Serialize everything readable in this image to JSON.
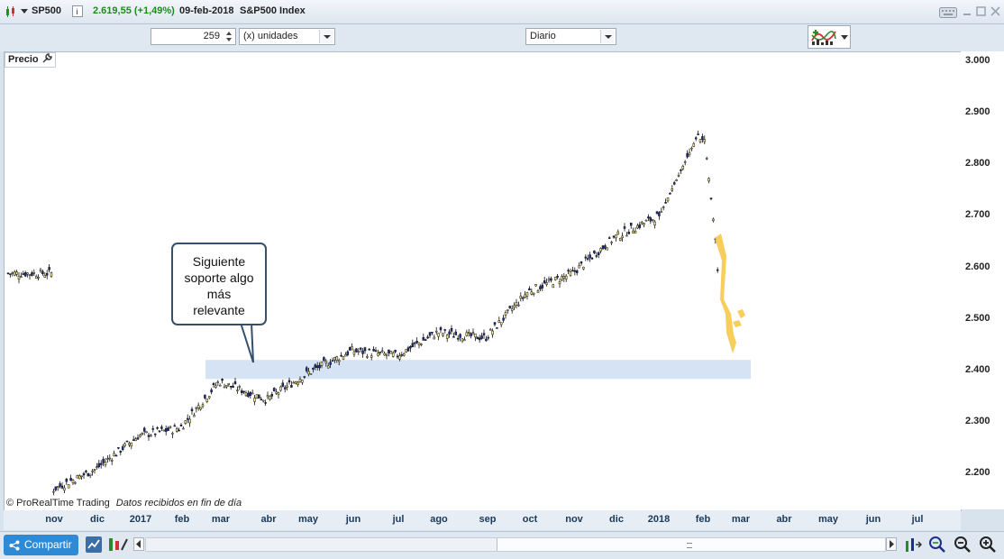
{
  "titlebar": {
    "symbol": "SP500",
    "price": "2.619,55 (+1,49%)",
    "date": "09-feb-2018",
    "instrument": "S&P500 Index"
  },
  "controls": {
    "units_value": "259",
    "units_label": "(x) unidades",
    "period": "Diario"
  },
  "chart": {
    "panel_label": "Precio",
    "callout_text": [
      "Siguiente",
      "soporte algo",
      "más",
      "relevante"
    ],
    "watermark": "© ProRealTime Trading",
    "status_text": "Datos recibidos en fin de día",
    "support_zone_range": [
      2385,
      2422
    ],
    "y_ticks": [
      "3.000",
      "2.900",
      "2.800",
      "2.700",
      "2.600",
      "2.500",
      "2.400",
      "2.300",
      "2.200"
    ],
    "x_ticks": [
      "nov",
      "dic",
      "2017",
      "feb",
      "mar",
      "abr",
      "may",
      "jun",
      "jul",
      "ago",
      "sep",
      "oct",
      "nov",
      "dic",
      "2018",
      "feb",
      "mar",
      "abr",
      "may",
      "jun",
      "jul"
    ],
    "colors": {
      "up": "#ffee88",
      "down": "#1c2f8f",
      "support": "#d6e3f4",
      "arrow": "#f6c640"
    }
  },
  "chart_data": {
    "type": "candlestick",
    "title": "S&P500 Index",
    "ylim": [
      2140,
      3020
    ],
    "x_labels": [
      "nov",
      "dic",
      "2017",
      "feb",
      "mar",
      "abr",
      "may",
      "jun",
      "jul",
      "ago",
      "sep",
      "oct",
      "nov",
      "dic",
      "2018",
      "feb",
      "mar",
      "abr",
      "may",
      "jun",
      "jul"
    ],
    "close_path": [
      [
        "nov",
        2170
      ],
      [
        "dic",
        2210
      ],
      [
        "2017",
        2275
      ],
      [
        "feb",
        2290
      ],
      [
        "mar",
        2380
      ],
      [
        "abr",
        2345
      ],
      [
        "may",
        2395
      ],
      [
        "jun",
        2440
      ],
      [
        "jul",
        2430
      ],
      [
        "ago",
        2475
      ],
      [
        "sep",
        2465
      ],
      [
        "oct",
        2555
      ],
      [
        "nov",
        2590
      ],
      [
        "dic",
        2660
      ],
      [
        "2018",
        2700
      ],
      [
        "feb",
        2600
      ]
    ],
    "last_close": 2619.55
  },
  "bottombar": {
    "share_label": "Compartir"
  }
}
